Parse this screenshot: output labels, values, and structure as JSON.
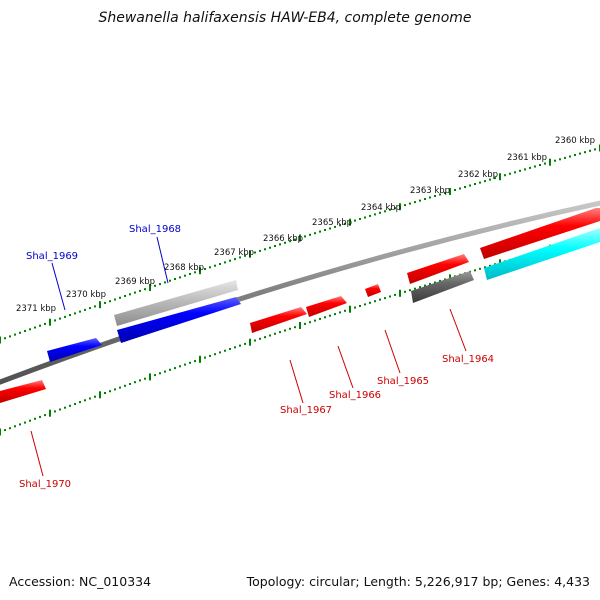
{
  "title": "Shewanella halifaxensis HAW-EB4, complete genome",
  "footer": {
    "accession": "Accession: NC_010334",
    "summary": "Topology: circular; Length: 5,226,917 bp; Genes: 4,433"
  },
  "colors": {
    "backbone": "#808080",
    "tick": "#008000",
    "forward_gene": "#ff0000",
    "reverse_gene": "#0000ff",
    "gray_feature": "#b4b4b4",
    "dark_feature": "#606060",
    "cyan_feature": "#00ffff",
    "label_blue": "#0000cc",
    "label_red": "#cc0000"
  },
  "scale": {
    "unit": "kbp",
    "labels": [
      "2360 kbp",
      "2361 kbp",
      "2362 kbp",
      "2363 kbp",
      "2364 kbp",
      "2365 kbp",
      "2366 kbp",
      "2367 kbp",
      "2368 kbp",
      "2369 kbp",
      "2370 kbp",
      "2371 kbp"
    ]
  },
  "genes": [
    {
      "name": "Shal_1964",
      "color": "red"
    },
    {
      "name": "Shal_1965",
      "color": "red"
    },
    {
      "name": "Shal_1966",
      "color": "red"
    },
    {
      "name": "Shal_1967",
      "color": "red"
    },
    {
      "name": "Shal_1968",
      "color": "blue"
    },
    {
      "name": "Shal_1969",
      "color": "blue"
    },
    {
      "name": "Shal_1970",
      "color": "red"
    }
  ]
}
